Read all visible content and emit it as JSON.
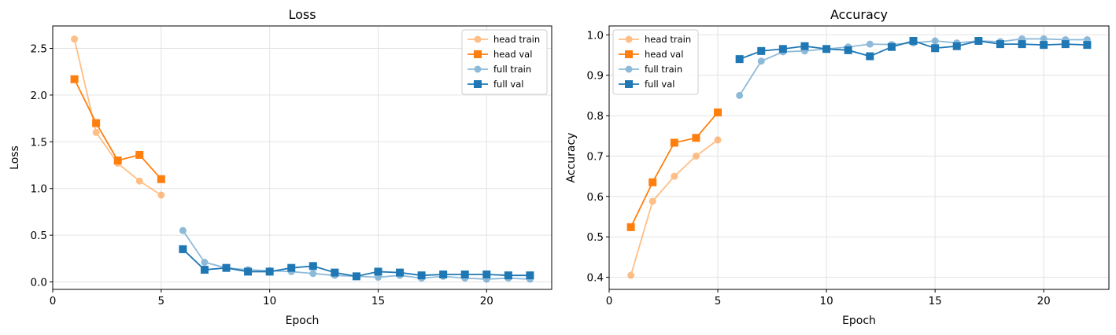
{
  "chart_data": [
    {
      "type": "line",
      "title": "Loss",
      "xlabel": "Epoch",
      "ylabel": "Loss",
      "xlim": [
        0,
        23
      ],
      "ylim": [
        -0.08,
        2.74
      ],
      "xticks": [
        0,
        5,
        10,
        15,
        20
      ],
      "yticks": [
        0.0,
        0.5,
        1.0,
        1.5,
        2.0,
        2.5
      ],
      "ytick_labels": [
        "0.0",
        "0.5",
        "1.0",
        "1.5",
        "2.0",
        "2.5"
      ],
      "grid": true,
      "legend_position": "top-right",
      "series": [
        {
          "name": "head train",
          "color": "#ff7f0e",
          "marker": "circle",
          "alpha": 0.5,
          "x": [
            1,
            2,
            3,
            4,
            5
          ],
          "y": [
            2.6,
            1.6,
            1.27,
            1.08,
            0.93
          ]
        },
        {
          "name": "head val",
          "color": "#ff7f0e",
          "marker": "square",
          "alpha": 1.0,
          "x": [
            1,
            2,
            3,
            4,
            5
          ],
          "y": [
            2.17,
            1.7,
            1.3,
            1.36,
            1.1
          ]
        },
        {
          "name": "full train",
          "color": "#1f77b4",
          "marker": "circle",
          "alpha": 0.5,
          "x": [
            6,
            7,
            8,
            9,
            10,
            11,
            12,
            13,
            14,
            15,
            16,
            17,
            18,
            19,
            20,
            21,
            22
          ],
          "y": [
            0.55,
            0.21,
            0.15,
            0.13,
            0.12,
            0.11,
            0.09,
            0.07,
            0.06,
            0.05,
            0.07,
            0.04,
            0.06,
            0.04,
            0.03,
            0.04,
            0.03
          ]
        },
        {
          "name": "full val",
          "color": "#1f77b4",
          "marker": "square",
          "alpha": 1.0,
          "x": [
            6,
            7,
            8,
            9,
            10,
            11,
            12,
            13,
            14,
            15,
            16,
            17,
            18,
            19,
            20,
            21,
            22
          ],
          "y": [
            0.35,
            0.13,
            0.15,
            0.11,
            0.11,
            0.15,
            0.17,
            0.1,
            0.06,
            0.11,
            0.1,
            0.07,
            0.08,
            0.08,
            0.08,
            0.07,
            0.07
          ]
        }
      ]
    },
    {
      "type": "line",
      "title": "Accuracy",
      "xlabel": "Epoch",
      "ylabel": "Accuracy",
      "xlim": [
        0,
        23
      ],
      "ylim": [
        0.37,
        1.022
      ],
      "xticks": [
        0,
        5,
        10,
        15,
        20
      ],
      "yticks": [
        0.4,
        0.5,
        0.6,
        0.7,
        0.8,
        0.9,
        1.0
      ],
      "ytick_labels": [
        "0.4",
        "0.5",
        "0.6",
        "0.7",
        "0.8",
        "0.9",
        "1.0"
      ],
      "grid": true,
      "legend_position": "top-left",
      "series": [
        {
          "name": "head train",
          "color": "#ff7f0e",
          "marker": "circle",
          "alpha": 0.5,
          "x": [
            1,
            2,
            3,
            4,
            5
          ],
          "y": [
            0.405,
            0.588,
            0.65,
            0.7,
            0.74
          ]
        },
        {
          "name": "head val",
          "color": "#ff7f0e",
          "marker": "square",
          "alpha": 1.0,
          "x": [
            1,
            2,
            3,
            4,
            5
          ],
          "y": [
            0.524,
            0.635,
            0.733,
            0.745,
            0.808
          ]
        },
        {
          "name": "full train",
          "color": "#1f77b4",
          "marker": "circle",
          "alpha": 0.5,
          "x": [
            6,
            7,
            8,
            9,
            10,
            11,
            12,
            13,
            14,
            15,
            16,
            17,
            18,
            19,
            20,
            21,
            22
          ],
          "y": [
            0.85,
            0.935,
            0.958,
            0.96,
            0.965,
            0.97,
            0.977,
            0.976,
            0.98,
            0.985,
            0.98,
            0.985,
            0.983,
            0.99,
            0.99,
            0.988,
            0.988
          ]
        },
        {
          "name": "full val",
          "color": "#1f77b4",
          "marker": "square",
          "alpha": 1.0,
          "x": [
            6,
            7,
            8,
            9,
            10,
            11,
            12,
            13,
            14,
            15,
            16,
            17,
            18,
            19,
            20,
            21,
            22
          ],
          "y": [
            0.94,
            0.96,
            0.965,
            0.972,
            0.965,
            0.962,
            0.947,
            0.97,
            0.985,
            0.967,
            0.972,
            0.985,
            0.977,
            0.977,
            0.975,
            0.977,
            0.975
          ]
        }
      ]
    }
  ]
}
